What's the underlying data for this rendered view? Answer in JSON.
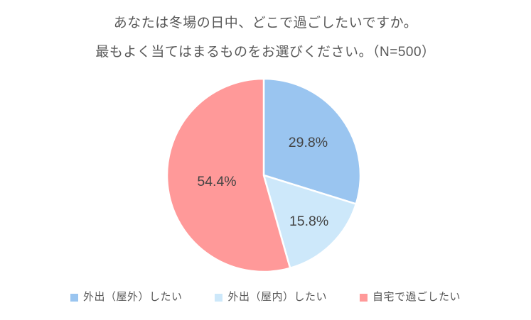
{
  "title": {
    "line1": "あなたは冬場の日中、どこで過ごしたいですか。",
    "line2": "最もよく当てはまるものをお選びください。（N=500）"
  },
  "chart_data": {
    "type": "pie",
    "title": "あなたは冬場の日中、どこで過ごしたいですか。最もよく当てはまるものをお選びください。（N=500）",
    "n_label": "N=500",
    "categories": [
      "外出（屋外）したい",
      "外出（屋内）したい",
      "自宅で過ごしたい"
    ],
    "values": [
      29.8,
      15.8,
      54.4
    ],
    "labels": [
      "29.8%",
      "15.8%",
      "54.4%"
    ],
    "unit": "%",
    "colors": [
      "#9AC5F0",
      "#CDE8FA",
      "#FF9999"
    ],
    "separator_color": "#ffffff",
    "label_color": "#444444",
    "start_angle_deg": 0,
    "direction": "clockwise",
    "label_radius_factors": [
      0.57,
      0.67,
      0.49
    ],
    "legend_position": "bottom"
  }
}
